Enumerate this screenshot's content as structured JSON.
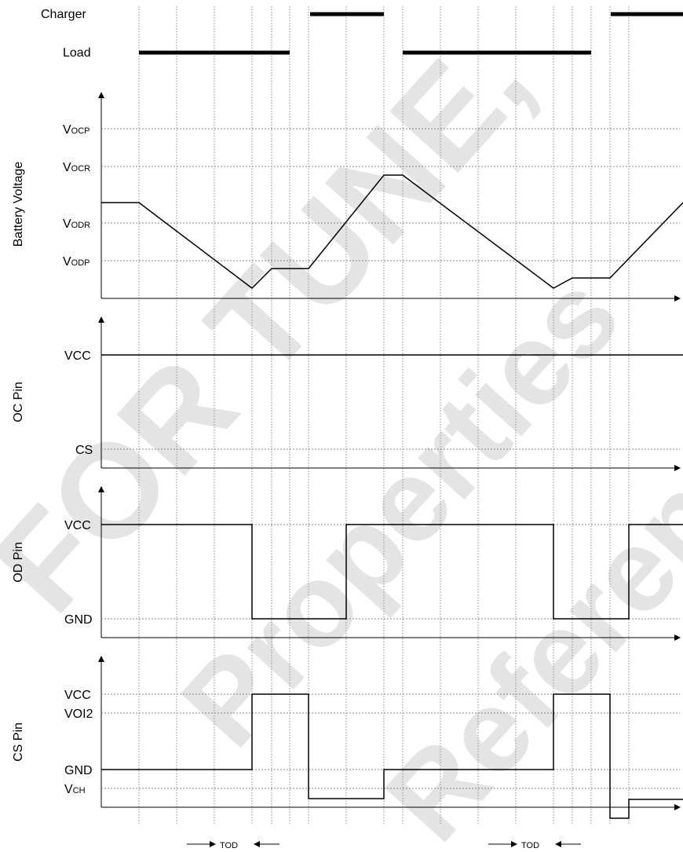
{
  "watermark": {
    "lines": [
      "FOR TUNE,",
      "Properties",
      "Reference"
    ]
  },
  "top": {
    "charger_label": "Charger",
    "load_label": "Load"
  },
  "panels": {
    "battery": {
      "ylabel": "Battery Voltage",
      "levels": [
        {
          "main": "V",
          "sub": "OCP"
        },
        {
          "main": "V",
          "sub": "OCR"
        },
        {
          "main": "V",
          "sub": "ODR"
        },
        {
          "main": "V",
          "sub": "ODP"
        }
      ]
    },
    "oc": {
      "ylabel": "OC Pin",
      "levels": [
        {
          "main": "VCC",
          "sub": ""
        },
        {
          "main": "CS",
          "sub": ""
        }
      ]
    },
    "od": {
      "ylabel": "OD Pin",
      "levels": [
        {
          "main": "VCC",
          "sub": ""
        },
        {
          "main": "GND",
          "sub": ""
        }
      ]
    },
    "cs": {
      "ylabel": "CS Pin",
      "levels": [
        {
          "main": "VCC",
          "sub": ""
        },
        {
          "main": "VOI2",
          "sub": ""
        },
        {
          "main": "GND",
          "sub": ""
        },
        {
          "main": "V",
          "sub": "CH"
        }
      ]
    }
  },
  "tod_labels": [
    "TOD",
    "TOD"
  ],
  "colors": {
    "line": "#000000",
    "grid": "#8a8a8a",
    "watermark": "#cfcfcf"
  }
}
